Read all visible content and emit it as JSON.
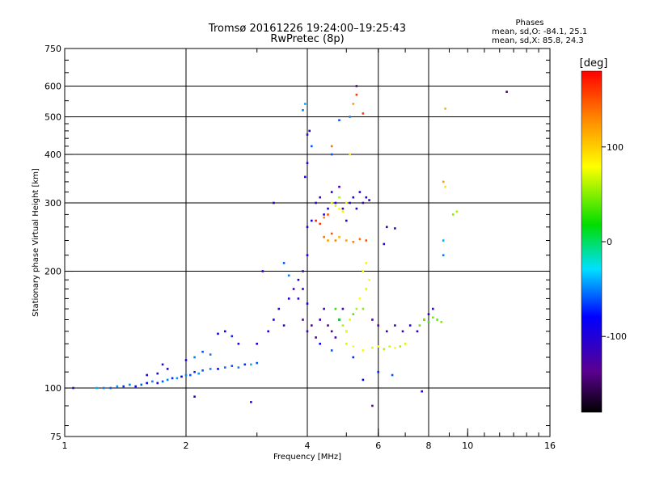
{
  "header": {
    "title_line1": "Tromsø 20161226 19:24:00–19:25:43",
    "title_line2": "RwPretec (8p)"
  },
  "stats": {
    "heading": "Phases",
    "line1": "mean, sd,O: -84.1, 25.1",
    "line2": "mean, sd,X:  85.8, 24.3"
  },
  "chart_data": {
    "type": "scatter",
    "xlabel": "Frequency [MHz]",
    "ylabel": "Stationary phase Virtual Height [km]",
    "x_scale": "log",
    "y_scale": "log",
    "xlim": [
      1,
      16
    ],
    "ylim": [
      75,
      750
    ],
    "x_ticks": [
      1,
      2,
      4,
      6,
      8,
      10,
      16
    ],
    "x_tick_labels": [
      "1",
      "2",
      "4",
      "6",
      "8",
      "10",
      "16"
    ],
    "x_grid": [
      2,
      4,
      6,
      8
    ],
    "y_ticks": [
      75,
      100,
      200,
      300,
      400,
      500,
      600,
      750
    ],
    "y_tick_labels": [
      "75",
      "100",
      "200",
      "300",
      "400",
      "500",
      "600",
      "750"
    ],
    "y_grid": [
      100,
      200,
      300,
      400,
      500,
      600
    ],
    "grid": true,
    "colorbar": {
      "label": "[deg]",
      "min": -180,
      "max": 180,
      "ticks": [
        100,
        0,
        -100
      ],
      "tick_labels": [
        "100",
        "0",
        "-100"
      ]
    },
    "points": [
      [
        1.05,
        100,
        -110
      ],
      [
        1.2,
        100,
        -40
      ],
      [
        1.25,
        100,
        -50
      ],
      [
        1.3,
        100,
        -60
      ],
      [
        1.35,
        101,
        -45
      ],
      [
        1.4,
        101,
        -70
      ],
      [
        1.45,
        102,
        -50
      ],
      [
        1.5,
        101,
        -90
      ],
      [
        1.55,
        102,
        -60
      ],
      [
        1.6,
        103,
        -80
      ],
      [
        1.65,
        104,
        -50
      ],
      [
        1.7,
        103,
        -90
      ],
      [
        1.75,
        104,
        -60
      ],
      [
        1.8,
        105,
        -50
      ],
      [
        1.85,
        106,
        -70
      ],
      [
        1.9,
        106,
        -45
      ],
      [
        1.95,
        107,
        -80
      ],
      [
        2.0,
        108,
        -50
      ],
      [
        2.05,
        108,
        -60
      ],
      [
        2.1,
        110,
        -70
      ],
      [
        2.15,
        109,
        -45
      ],
      [
        2.2,
        111,
        -60
      ],
      [
        2.3,
        112,
        -50
      ],
      [
        2.4,
        112,
        -80
      ],
      [
        2.5,
        113,
        -55
      ],
      [
        2.6,
        114,
        -60
      ],
      [
        2.7,
        113,
        -50
      ],
      [
        2.8,
        115,
        -70
      ],
      [
        2.9,
        115,
        -40
      ],
      [
        3.0,
        116,
        -60
      ],
      [
        1.6,
        108,
        -90
      ],
      [
        1.7,
        109,
        -100
      ],
      [
        1.8,
        112,
        -95
      ],
      [
        1.75,
        115,
        -110
      ],
      [
        2.0,
        118,
        -100
      ],
      [
        2.1,
        120,
        -50
      ],
      [
        2.2,
        124,
        -60
      ],
      [
        2.3,
        122,
        -50
      ],
      [
        2.4,
        138,
        -90
      ],
      [
        2.5,
        140,
        -80
      ],
      [
        2.6,
        136,
        -70
      ],
      [
        2.7,
        130,
        -100
      ],
      [
        3.0,
        130,
        -100
      ],
      [
        3.2,
        140,
        -95
      ],
      [
        3.3,
        150,
        -105
      ],
      [
        3.4,
        160,
        -100
      ],
      [
        3.5,
        145,
        -110
      ],
      [
        3.6,
        170,
        -95
      ],
      [
        3.7,
        180,
        -120
      ],
      [
        3.8,
        190,
        -100
      ],
      [
        3.9,
        200,
        -110
      ],
      [
        4.0,
        220,
        -100
      ],
      [
        3.5,
        210,
        -60
      ],
      [
        3.6,
        195,
        -50
      ],
      [
        3.3,
        300,
        -100
      ],
      [
        3.1,
        200,
        -90
      ],
      [
        2.9,
        92,
        -100
      ],
      [
        2.1,
        95,
        -110
      ],
      [
        3.9,
        150,
        -130
      ],
      [
        4.0,
        140,
        -120
      ],
      [
        4.1,
        145,
        -130
      ],
      [
        4.2,
        135,
        -140
      ],
      [
        4.3,
        150,
        -120
      ],
      [
        4.4,
        160,
        -110
      ],
      [
        4.5,
        145,
        -130
      ],
      [
        4.6,
        140,
        -140
      ],
      [
        4.7,
        135,
        -120
      ],
      [
        4.8,
        150,
        -110
      ],
      [
        4.9,
        160,
        -120
      ],
      [
        5.0,
        140,
        -100
      ],
      [
        3.8,
        170,
        -110
      ],
      [
        3.9,
        180,
        -100
      ],
      [
        4.0,
        165,
        -95
      ],
      [
        4.0,
        260,
        -100
      ],
      [
        4.1,
        270,
        -95
      ],
      [
        4.2,
        300,
        -110
      ],
      [
        4.3,
        310,
        -120
      ],
      [
        4.4,
        280,
        -100
      ],
      [
        4.5,
        290,
        -90
      ],
      [
        4.6,
        320,
        -110
      ],
      [
        4.7,
        300,
        -100
      ],
      [
        4.8,
        330,
        -120
      ],
      [
        4.9,
        290,
        -110
      ],
      [
        5.0,
        270,
        -105
      ],
      [
        5.1,
        300,
        -110
      ],
      [
        5.2,
        310,
        -100
      ],
      [
        5.3,
        290,
        -95
      ],
      [
        5.4,
        320,
        -110
      ],
      [
        5.5,
        300,
        -120
      ],
      [
        5.6,
        310,
        -100
      ],
      [
        5.7,
        305,
        -110
      ],
      [
        4.0,
        380,
        -100
      ],
      [
        4.0,
        450,
        -110
      ],
      [
        4.05,
        460,
        -100
      ],
      [
        3.9,
        520,
        -50
      ],
      [
        3.95,
        540,
        -40
      ],
      [
        4.1,
        420,
        -60
      ],
      [
        3.95,
        350,
        -110
      ],
      [
        4.6,
        400,
        -60
      ],
      [
        4.4,
        245,
        140
      ],
      [
        4.5,
        240,
        120
      ],
      [
        4.6,
        250,
        150
      ],
      [
        4.7,
        240,
        130
      ],
      [
        4.8,
        245,
        110
      ],
      [
        5.0,
        240,
        120
      ],
      [
        5.2,
        238,
        130
      ],
      [
        5.4,
        242,
        140
      ],
      [
        5.6,
        240,
        150
      ],
      [
        4.2,
        270,
        170
      ],
      [
        4.3,
        265,
        160
      ],
      [
        4.5,
        280,
        150
      ],
      [
        4.4,
        275,
        130
      ],
      [
        4.6,
        300,
        90
      ],
      [
        4.8,
        290,
        80
      ],
      [
        4.7,
        295,
        70
      ],
      [
        4.9,
        285,
        85
      ],
      [
        4.8,
        310,
        60
      ],
      [
        5.0,
        300,
        90
      ],
      [
        4.7,
        160,
        30
      ],
      [
        4.8,
        150,
        20
      ],
      [
        4.9,
        145,
        60
      ],
      [
        5.0,
        140,
        80
      ],
      [
        5.1,
        150,
        70
      ],
      [
        5.2,
        155,
        40
      ],
      [
        5.3,
        160,
        60
      ],
      [
        5.4,
        170,
        80
      ],
      [
        5.5,
        160,
        50
      ],
      [
        5.6,
        180,
        70
      ],
      [
        5.7,
        190,
        80
      ],
      [
        5.5,
        200,
        75
      ],
      [
        5.6,
        210,
        85
      ],
      [
        5.0,
        130,
        70
      ],
      [
        5.2,
        128,
        80
      ],
      [
        5.5,
        125,
        75
      ],
      [
        5.8,
        127,
        70
      ],
      [
        6.0,
        128,
        80
      ],
      [
        6.2,
        126,
        60
      ],
      [
        6.4,
        128,
        70
      ],
      [
        6.6,
        127,
        80
      ],
      [
        6.8,
        128,
        60
      ],
      [
        7.0,
        130,
        70
      ],
      [
        5.8,
        150,
        -120
      ],
      [
        6.0,
        145,
        -130
      ],
      [
        6.3,
        140,
        -120
      ],
      [
        6.6,
        145,
        -110
      ],
      [
        6.9,
        140,
        -120
      ],
      [
        7.2,
        145,
        -100
      ],
      [
        7.5,
        140,
        -110
      ],
      [
        7.8,
        150,
        -120
      ],
      [
        8.0,
        155,
        -100
      ],
      [
        8.2,
        160,
        -110
      ],
      [
        7.6,
        145,
        40
      ],
      [
        7.8,
        150,
        50
      ],
      [
        8.0,
        148,
        30
      ],
      [
        8.2,
        152,
        45
      ],
      [
        8.4,
        150,
        40
      ],
      [
        8.6,
        148,
        50
      ],
      [
        4.3,
        130,
        -80
      ],
      [
        4.6,
        125,
        -60
      ],
      [
        5.2,
        120,
        -70
      ],
      [
        5.5,
        105,
        -80
      ],
      [
        6.0,
        110,
        -70
      ],
      [
        6.5,
        108,
        -60
      ],
      [
        4.8,
        490,
        -60
      ],
      [
        5.1,
        500,
        -50
      ],
      [
        5.2,
        540,
        120
      ],
      [
        5.3,
        600,
        -140
      ],
      [
        5.3,
        570,
        160
      ],
      [
        5.5,
        510,
        160
      ],
      [
        5.1,
        400,
        90
      ],
      [
        4.6,
        420,
        140
      ],
      [
        6.3,
        260,
        -120
      ],
      [
        6.6,
        258,
        -110
      ],
      [
        6.2,
        235,
        -100
      ],
      [
        8.7,
        340,
        120
      ],
      [
        8.8,
        330,
        90
      ],
      [
        9.2,
        280,
        50
      ],
      [
        9.4,
        285,
        60
      ],
      [
        8.7,
        240,
        -40
      ],
      [
        8.7,
        220,
        -50
      ],
      [
        12.5,
        580,
        -150
      ],
      [
        8.8,
        525,
        110
      ],
      [
        7.7,
        98,
        -100
      ],
      [
        5.8,
        90,
        -130
      ]
    ]
  }
}
